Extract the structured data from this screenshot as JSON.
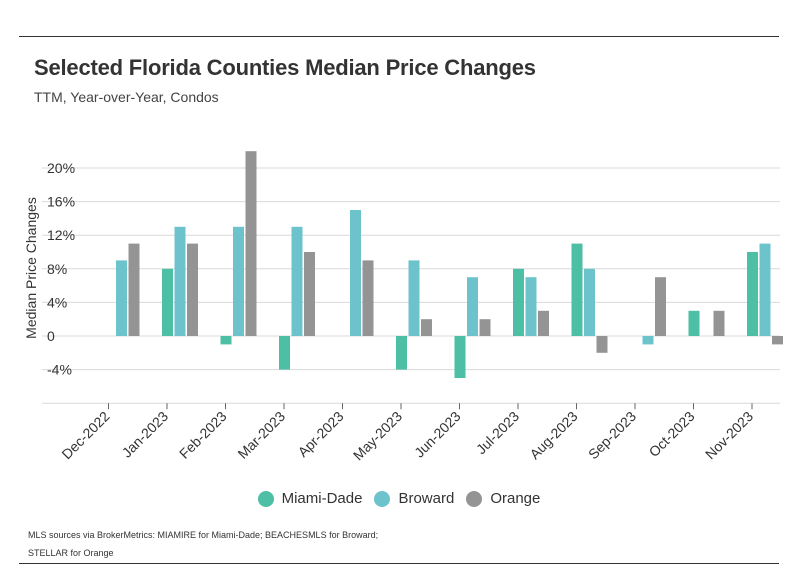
{
  "header": {
    "title": "Selected Florida Counties Median Price Changes",
    "subtitle": "TTM, Year-over-Year, Condos"
  },
  "legend": {
    "items": [
      {
        "label": "Miami-Dade",
        "color": "#4DBFA4"
      },
      {
        "label": "Broward",
        "color": "#6CC3CC"
      },
      {
        "label": "Orange",
        "color": "#949494"
      }
    ]
  },
  "footer": {
    "source_line1": "MLS sources via BrokerMetrics: MIAMIRE for Miami-Dade; BEACHESMLS for Broward;",
    "source_line2": "STELLAR for Orange"
  },
  "chart_data": {
    "type": "bar",
    "title": "Selected Florida Counties Median Price Changes",
    "subtitle": "TTM, Year-over-Year, Condos",
    "ylabel": "Median Price Changes",
    "xlabel": "",
    "ylim": [
      -8,
      22
    ],
    "yticks": [
      -4,
      0,
      4,
      8,
      12,
      16,
      20
    ],
    "ytick_labels": [
      "-4%",
      "0",
      "4%",
      "8%",
      "12%",
      "16%",
      "20%"
    ],
    "grid": "horizontal",
    "legend_position": "bottom",
    "categories": [
      "Dec-2022",
      "Jan-2023",
      "Feb-2023",
      "Mar-2023",
      "Apr-2023",
      "May-2023",
      "Jun-2023",
      "Jul-2023",
      "Aug-2023",
      "Sep-2023",
      "Oct-2023",
      "Nov-2023"
    ],
    "series": [
      {
        "name": "Miami-Dade",
        "color": "#4DBFA4",
        "values": [
          0,
          8,
          -1,
          -4,
          0,
          -4,
          -5,
          8,
          11,
          0,
          3,
          10
        ]
      },
      {
        "name": "Broward",
        "color": "#6CC3CC",
        "values": [
          9,
          13,
          13,
          13,
          15,
          9,
          7,
          7,
          8,
          -1,
          0,
          11
        ]
      },
      {
        "name": "Orange",
        "color": "#949494",
        "values": [
          11,
          11,
          22,
          10,
          9,
          2,
          2,
          3,
          -2,
          7,
          3,
          -1
        ]
      }
    ]
  }
}
